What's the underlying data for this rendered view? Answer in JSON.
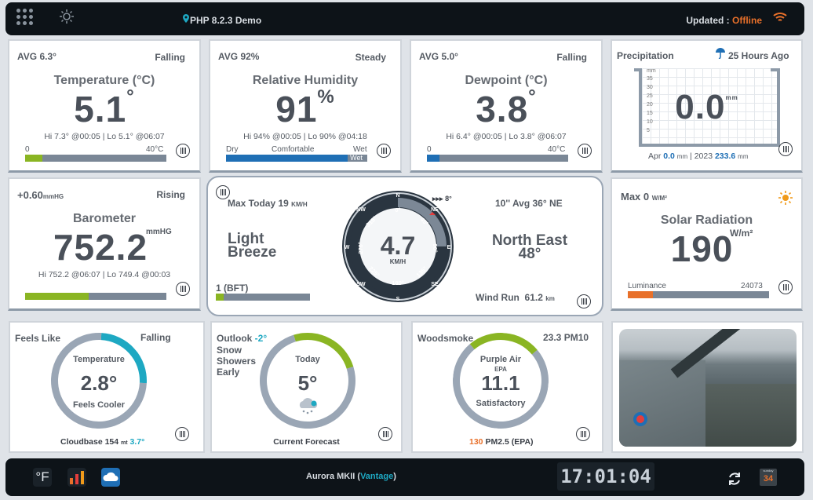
{
  "topbar": {
    "station": "PHP 8.2.3 Demo",
    "updated_label": "Updated : ",
    "updated_status": "Offline"
  },
  "temperature": {
    "avg": "AVG 6.3°",
    "trend": "Falling",
    "title": "Temperature (°C)",
    "value": "5.1",
    "unit": "°",
    "hilo": "Hi 7.3° @00:05 | Lo 5.1° @06:07",
    "scale_min": "0",
    "scale_max": "40°C",
    "level": 0.12
  },
  "humidity": {
    "avg": "AVG 92%",
    "trend": "Steady",
    "title": "Relative Humidity",
    "value": "91",
    "unit": "%",
    "hilo": "Hi 94% @00:05 | Lo 90% @04:18",
    "dry": "Dry",
    "comfortable": "Comfortable",
    "wet": "Wet",
    "bar_tag": "Wet",
    "level": 0.91
  },
  "dewpoint": {
    "avg": "AVG 5.0°",
    "trend": "Falling",
    "title": "Dewpoint (°C)",
    "value": "3.8",
    "unit": "°",
    "hilo": "Hi 6.4° @00:05 | Lo 3.8° @06:07",
    "scale_min": "0",
    "scale_max": "40°C",
    "level": 0.09
  },
  "precipitation": {
    "title": "Precipitation",
    "period": "25 Hours Ago",
    "value": "0.0",
    "unit": "mm",
    "gauge_unit": "mm",
    "ticks": [
      "35",
      "30",
      "25",
      "20",
      "15",
      "10",
      "5"
    ],
    "month_label": "Apr",
    "month_value": "0.0",
    "year_label": "2023",
    "year_value": "233.6",
    "mm": "mm"
  },
  "barometer": {
    "change": "+0.60",
    "change_unit": "mmHG",
    "trend": "Rising",
    "title": "Barometer",
    "value": "752.2",
    "unit": "mmHG",
    "hilo": "Hi 752.2 @06:07 | Lo 749.4 @00:03",
    "level": 0.45
  },
  "wind": {
    "max_label": "Max Today",
    "max_value": "19",
    "max_unit": "KM/H",
    "description_1": "Light",
    "description_2": "Breeze",
    "bft": "1 (BFT)",
    "bft_level": 0.08,
    "speed": "4.7",
    "speed_unit": "KM/H",
    "compass_points": [
      "N",
      "NE",
      "E",
      "SE",
      "S",
      "SW",
      "W",
      "NW"
    ],
    "degrees": [
      "0°",
      "45°",
      "90°",
      "135°",
      "180°",
      "225°",
      "270°",
      "315°"
    ],
    "marker": "8°",
    "avg": "10'' Avg 36° NE",
    "direction": "North East",
    "direction_deg": "48°",
    "run_label": "Wind Run",
    "run_value": "61.2",
    "run_unit": "km"
  },
  "solar": {
    "max_label": "Max 0",
    "max_unit": "W/M²",
    "title": "Solar Radiation",
    "value": "190",
    "unit": "W/m²",
    "lum_label": "Luminance",
    "lum_value": "24073",
    "level": 0.18
  },
  "feels": {
    "label": "Feels Like",
    "trend": "Falling",
    "inner_title": "Temperature",
    "value": "2.8°",
    "desc": "Feels Cooler",
    "cloud_label": "Cloudbase 154",
    "cloud_unit": "mt",
    "cloud_extra": "3.7°"
  },
  "outlook": {
    "label": "Outlook",
    "temp": "-2°",
    "line1": "Snow",
    "line2": "Showers",
    "line3": "Early",
    "inner_title": "Today",
    "value": "5°",
    "footer": "Current Forecast"
  },
  "air": {
    "label": "Woodsmoke",
    "pm10": "23.3 PM10",
    "inner_title": "Purple Air",
    "epa": "EPA",
    "value": "11.1",
    "desc": "Satisfactory",
    "pm25_value": "130",
    "pm25_label": "PM2.5 (EPA)"
  },
  "bottombar": {
    "unit_toggle": "°F",
    "station": "Aurora MKII (",
    "station_link": "Vantage",
    "station_end": ")",
    "clock": "17:01:04",
    "day_label": "sunday",
    "day": "34"
  },
  "colors": {
    "green": "#8ab523",
    "blue": "#1f6fb5",
    "orange": "#e8702a",
    "teal": "#1ea8c2",
    "gray": "#7a8796"
  }
}
